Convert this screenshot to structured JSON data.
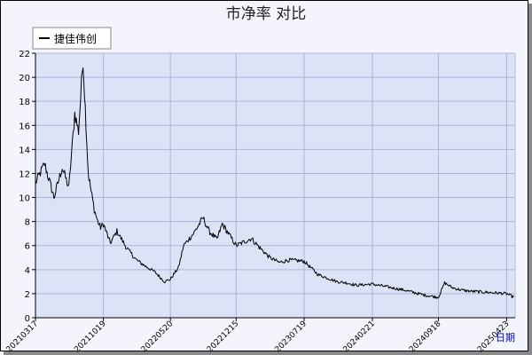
{
  "chart_data": {
    "type": "line",
    "title": "市净率  对比",
    "xlabel": "日期",
    "ylabel": "",
    "ylim": [
      0,
      22
    ],
    "yticks": [
      0,
      2,
      4,
      6,
      8,
      10,
      12,
      14,
      16,
      18,
      20,
      22
    ],
    "grid": true,
    "legend_position": "top-left",
    "x_tick_labels": [
      "20210317",
      "20211019",
      "20220520",
      "20221215",
      "20230719",
      "20240221",
      "20240918",
      "20250423"
    ],
    "series": [
      {
        "name": "捷佳伟创",
        "color": "#000000",
        "x": [
          "20210317",
          "20210415",
          "20210515",
          "20210610",
          "20210701",
          "20210720",
          "20210801",
          "20210815",
          "20210901",
          "20210910",
          "20210920",
          "20211001",
          "20211010",
          "20211019",
          "20211110",
          "20211201",
          "20220101",
          "20220201",
          "20220301",
          "20220401",
          "20220501",
          "20220520",
          "20220615",
          "20220701",
          "20220801",
          "20220901",
          "20220920",
          "20221015",
          "20221101",
          "20221215",
          "20230101",
          "20230201",
          "20230301",
          "20230401",
          "20230501",
          "20230601",
          "20230719",
          "20230901",
          "20231001",
          "20231101",
          "20231201",
          "20240101",
          "20240221",
          "20240401",
          "20240601",
          "20240801",
          "20240918",
          "20241008",
          "20241101",
          "20241201",
          "20250101",
          "20250301",
          "20250423",
          "20250515"
        ],
        "y": [
          11.2,
          12.8,
          10.0,
          12.5,
          10.8,
          17.0,
          15.5,
          21.5,
          12.0,
          10.5,
          9.0,
          8.0,
          7.5,
          7.8,
          6.2,
          7.2,
          5.8,
          4.8,
          4.3,
          3.8,
          3.0,
          3.2,
          4.2,
          6.0,
          7.0,
          8.3,
          7.2,
          6.5,
          7.8,
          6.0,
          6.2,
          6.6,
          5.8,
          5.0,
          4.6,
          4.8,
          4.7,
          3.6,
          3.3,
          3.0,
          2.9,
          2.7,
          2.8,
          2.6,
          2.3,
          1.9,
          1.7,
          2.9,
          2.5,
          2.3,
          2.2,
          2.1,
          2.0,
          1.7
        ]
      }
    ]
  }
}
